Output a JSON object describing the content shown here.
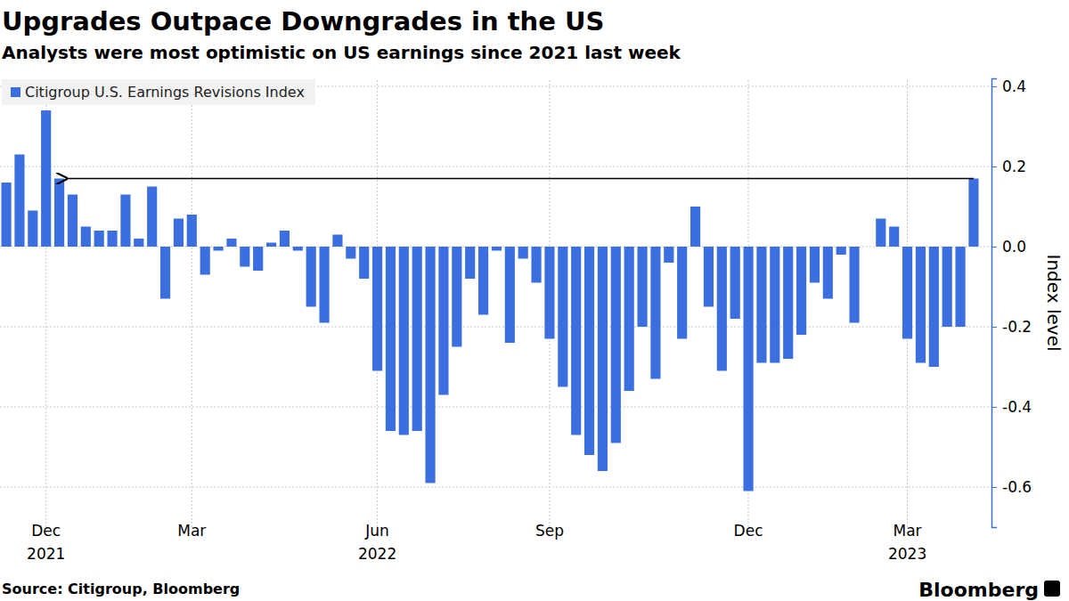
{
  "chart_data": {
    "type": "bar",
    "title": "Upgrades Outpace Downgrades in the US",
    "subtitle": "Analysts were most optimistic on US earnings since 2021 last week",
    "y_label": "Index level",
    "source": "Source: Citigroup, Bloomberg",
    "credit": "Bloomberg",
    "categories": [
      null,
      null,
      null,
      "Dec 2021",
      null,
      null,
      null,
      null,
      null,
      null,
      null,
      null,
      null,
      null,
      "Mar",
      null,
      null,
      null,
      null,
      null,
      null,
      null,
      null,
      null,
      null,
      null,
      null,
      null,
      "Jun 2022",
      null,
      null,
      null,
      null,
      null,
      null,
      null,
      null,
      null,
      null,
      null,
      null,
      "Sep",
      null,
      null,
      null,
      null,
      null,
      null,
      null,
      null,
      null,
      null,
      null,
      null,
      null,
      null,
      "Dec",
      null,
      null,
      null,
      null,
      null,
      null,
      null,
      null,
      null,
      null,
      null,
      "Mar 2023",
      null,
      null,
      null,
      null,
      null
    ],
    "series": [
      {
        "name": "Citigroup U.S. Earnings Revisions Index",
        "color": "#3b6fe0",
        "values": [
          0.16,
          0.23,
          0.09,
          0.34,
          0.17,
          0.13,
          0.05,
          0.04,
          0.04,
          0.13,
          0.02,
          0.15,
          -0.13,
          0.07,
          0.08,
          -0.07,
          -0.01,
          0.02,
          -0.05,
          -0.06,
          0.01,
          0.04,
          -0.01,
          -0.15,
          -0.19,
          0.03,
          -0.03,
          -0.08,
          -0.31,
          -0.46,
          -0.47,
          -0.46,
          -0.59,
          -0.37,
          -0.25,
          -0.08,
          -0.17,
          -0.01,
          -0.24,
          -0.03,
          -0.09,
          -0.23,
          -0.35,
          -0.47,
          -0.52,
          -0.56,
          -0.49,
          -0.36,
          -0.2,
          -0.33,
          -0.04,
          -0.23,
          0.1,
          -0.15,
          -0.31,
          -0.18,
          -0.61,
          -0.29,
          -0.29,
          -0.28,
          -0.22,
          -0.09,
          -0.13,
          -0.02,
          -0.19,
          0,
          0.07,
          0.05,
          -0.23,
          -0.29,
          -0.3,
          -0.2,
          -0.2,
          0.17
        ]
      }
    ],
    "ylim": [
      -0.7,
      0.42
    ],
    "yticks": [
      -0.6,
      -0.4,
      -0.2,
      {
        "value": 0,
        "label": "0.0"
      },
      0.2,
      0.4
    ],
    "grid": true,
    "legend": "upper left"
  }
}
